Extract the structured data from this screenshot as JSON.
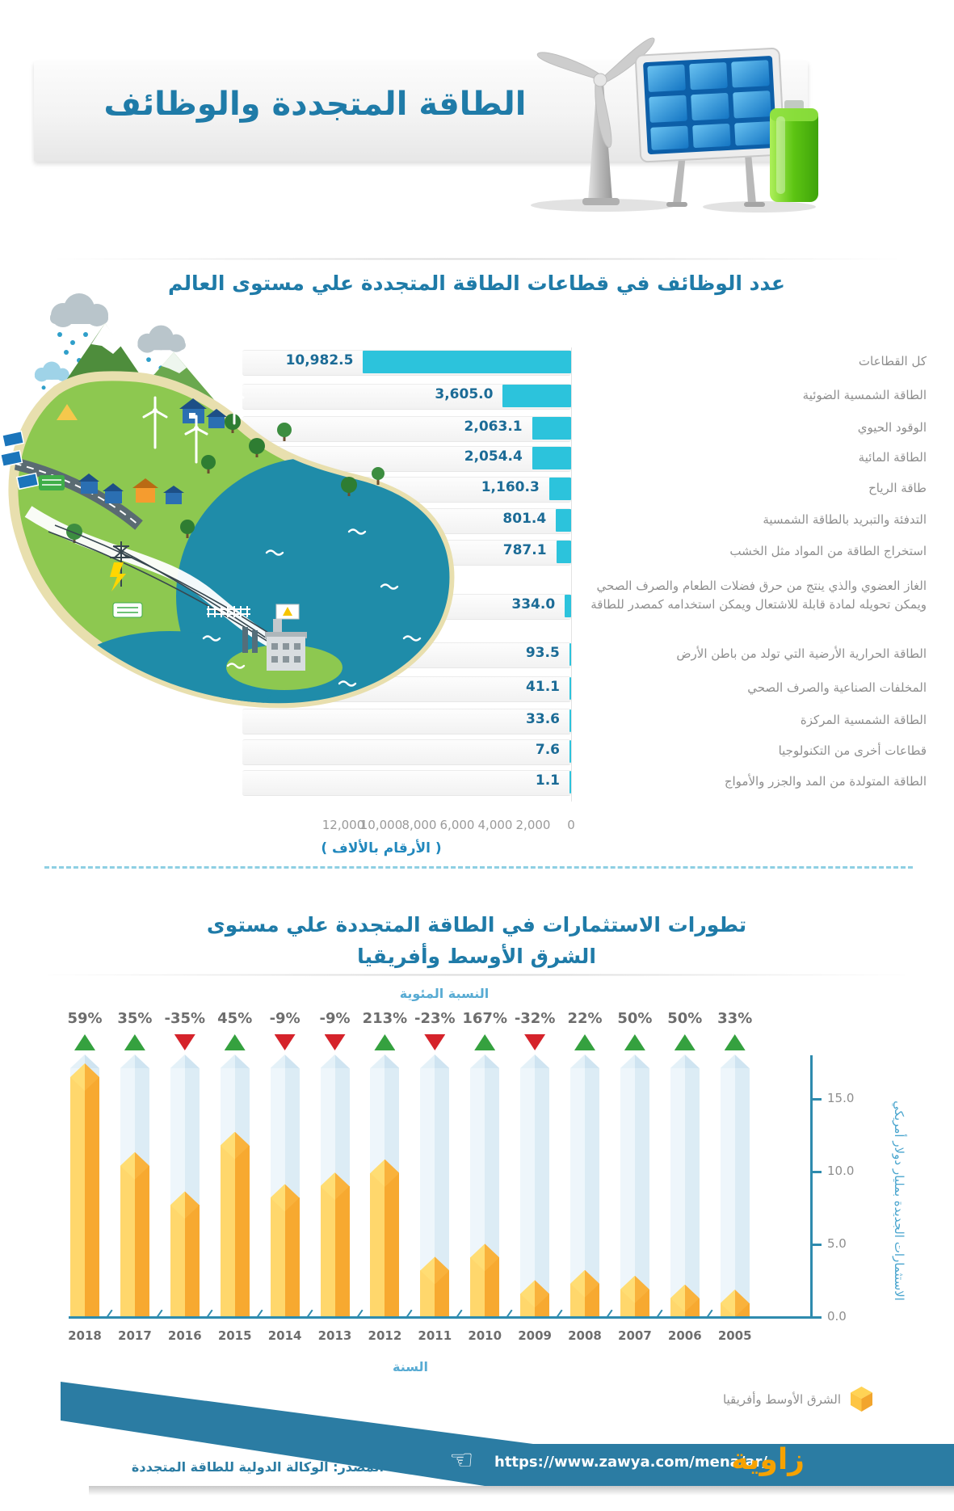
{
  "header": {
    "title": "الطاقة المتجددة والوظائف"
  },
  "colors": {
    "accent_blue": "#1f7ba8",
    "bar_cyan": "#2cc3dc",
    "value_blue": "#1b6b96",
    "label_gray": "#8e8e8e",
    "up_green": "#35a13f",
    "down_red": "#d5232b",
    "column_yellow_light": "#ffd76c",
    "column_yellow_dark": "#f7a930",
    "column_track_light": "#eef6fb",
    "column_track_dark": "#dcecf5",
    "axis_teal": "#2e8bae",
    "light_blue_label": "#58abd3",
    "footer_teal": "#2b7ca3",
    "logo_orange": "#f6a200"
  },
  "chart_data": [
    {
      "type": "bar",
      "orientation": "horizontal",
      "title": "عدد الوظائف في قطاعات الطاقة المتجددة علي مستوى العالم",
      "axis_note": "( الأرقام بالألاف )",
      "x_ticks": [
        "12,000",
        "10,000",
        "8,000",
        "6,000",
        "4,000",
        "2,000",
        "0"
      ],
      "xlim": [
        0,
        12000
      ],
      "categories": [
        "كل القطاعات",
        "الطاقة الشمسية الضوئية",
        "الوقود الحيوي",
        "الطاقة المائية",
        "طاقة الرياح",
        "التدفئة والتبريد بالطاقة الشمسية",
        "استخراج الطاقة من المواد مثل الخشب",
        "الغاز العضوي والذي ينتج  من حرق فضلات الطعام والصرف الصحي ويمكن تحويله لمادة قابلة للاشتعال ويمكن استخدامه كمصدر للطاقة",
        "الطاقة الحرارية الأرضية التي تولد من باطن الأرض",
        "المخلفات الصناعية والصرف الصحي",
        "الطاقة الشمسية المركزة",
        "قطاعات أخرى من التكنولوجيا",
        "الطاقة المتولدة من المد والجزر والأمواج"
      ],
      "values": [
        10982.5,
        3605.0,
        2063.1,
        2054.4,
        1160.3,
        801.4,
        787.1,
        334.0,
        93.5,
        41.1,
        33.6,
        7.6,
        1.1
      ],
      "value_labels": [
        "10,982.5",
        "3,605.0",
        "2,063.1",
        "2,054.4",
        "1,160.3",
        "801.4",
        "787.1",
        "334.0",
        "93.5",
        "41.1",
        "33.6",
        "7.6",
        "1.1"
      ]
    },
    {
      "type": "bar",
      "style": "3d-column",
      "title_line1": "تطورات الاستثمارات في الطاقة المتجددة علي مستوى",
      "title_line2": "الشرق الأوسط وأفريقيا",
      "percent_axis_label": "النسبة المئوية",
      "ylabel": "الاستثمارات الجديدة بمليار دولار أمريكي",
      "xlabel": "السنة",
      "legend": "الشرق الأوسط وأفريقيا",
      "y_ticks": [
        "15.0",
        "10.0",
        "5.0",
        "0.0"
      ],
      "ylim": [
        0,
        17
      ],
      "years": [
        "2018",
        "2017",
        "2016",
        "2015",
        "2014",
        "2013",
        "2012",
        "2011",
        "2010",
        "2009",
        "2008",
        "2007",
        "2006",
        "2005"
      ],
      "values_billion_usd_est": [
        16.5,
        10.4,
        7.7,
        11.8,
        8.2,
        9.0,
        9.9,
        3.2,
        4.1,
        1.6,
        2.3,
        1.9,
        1.3,
        0.95
      ],
      "percent_change": [
        "59%",
        "35%",
        "-35%",
        "45%",
        "-9%",
        "-9%",
        "213%",
        "-23%",
        "167%",
        "-32%",
        "22%",
        "50%",
        "50%",
        "33%"
      ],
      "percent_directions": [
        "up",
        "up",
        "down",
        "up",
        "down",
        "down",
        "up",
        "down",
        "up",
        "down",
        "up",
        "up",
        "up",
        "up"
      ]
    }
  ],
  "footer": {
    "source": "المصدر: الوكالة الدولية للطاقة المتجددة",
    "url": "https://www.zawya.com/mena/ar/",
    "logo": "زاوية",
    "hand_icon": "☜"
  }
}
